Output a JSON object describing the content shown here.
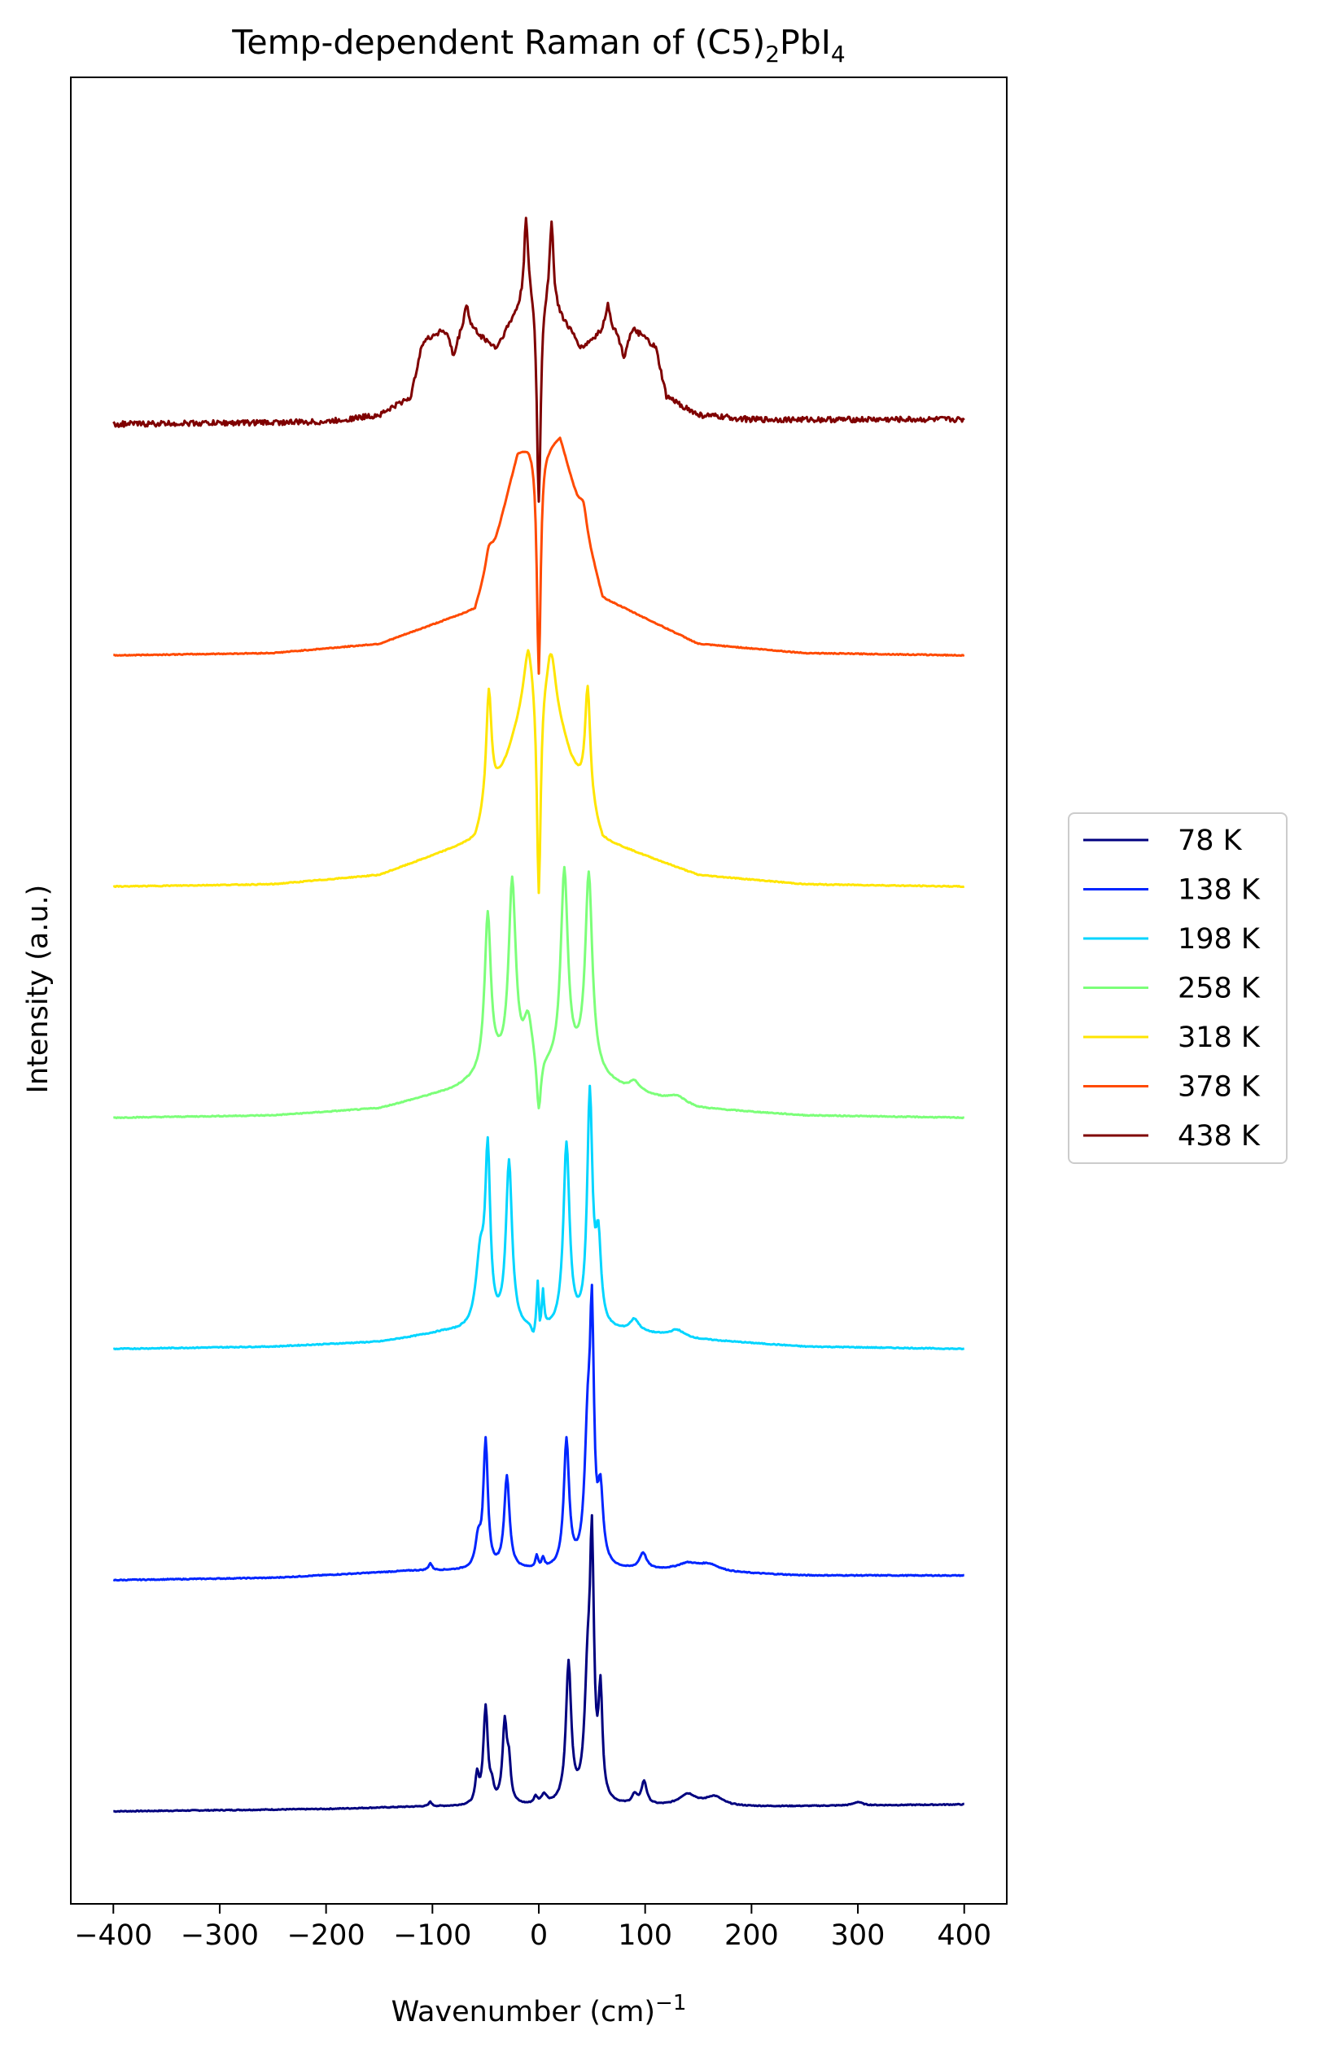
{
  "chart_data": {
    "type": "line",
    "title_main": "Temp-dependent Raman of (C5)",
    "title_sub1": "2",
    "title_mid": "PbI",
    "title_sub2": "4",
    "xlabel_main": "Wavenumber (cm)",
    "xlabel_sup": "−1",
    "ylabel": "Intensity (a.u.)",
    "xlim": [
      -440,
      440
    ],
    "ylim": [
      -0.4,
      7.5
    ],
    "y_ticks_shown": false,
    "grid": false,
    "legend_position": "outside-right",
    "x_ticks": [
      {
        "value": -400,
        "label": "−400"
      },
      {
        "value": -300,
        "label": "−300"
      },
      {
        "value": -200,
        "label": "−200"
      },
      {
        "value": -100,
        "label": "−100"
      },
      {
        "value": 0,
        "label": "0"
      },
      {
        "value": 100,
        "label": "100"
      },
      {
        "value": 200,
        "label": "200"
      },
      {
        "value": 300,
        "label": "300"
      },
      {
        "value": 400,
        "label": "400"
      }
    ],
    "series": [
      {
        "name": "78 K",
        "color": "#00007f",
        "offset": 0.0,
        "baseline": [
          [
            -400,
            0.0
          ],
          [
            -200,
            0.01
          ],
          [
            -110,
            0.02
          ],
          [
            200,
            0.02
          ],
          [
            400,
            0.03
          ]
        ],
        "peaks": [
          [
            -102,
            0.02,
            1.5
          ],
          [
            -58,
            0.12,
            2
          ],
          [
            -50,
            0.42,
            2.5
          ],
          [
            -44,
            0.06,
            2
          ],
          [
            -32,
            0.35,
            2.5
          ],
          [
            -28,
            0.15,
            2
          ],
          [
            -3,
            0.03,
            2
          ],
          [
            5,
            0.04,
            3
          ],
          [
            28,
            0.6,
            3
          ],
          [
            46,
            0.5,
            3.5
          ],
          [
            50,
            1.0,
            2.2
          ],
          [
            58,
            0.45,
            2.2
          ],
          [
            90,
            0.04,
            3
          ],
          [
            99,
            0.1,
            3
          ],
          [
            140,
            0.05,
            10
          ],
          [
            165,
            0.04,
            10
          ],
          [
            300,
            0.015,
            5
          ]
        ],
        "dips": []
      },
      {
        "name": "138 K",
        "color": "#0025ff",
        "offset": 1.0,
        "baseline": [
          [
            -400,
            0.0
          ],
          [
            -250,
            0.01
          ],
          [
            -120,
            0.04
          ],
          [
            120,
            0.04
          ],
          [
            250,
            0.02
          ],
          [
            400,
            0.02
          ]
        ],
        "peaks": [
          [
            -102,
            0.03,
            2
          ],
          [
            -57,
            0.12,
            3
          ],
          [
            -50,
            0.55,
            2.5
          ],
          [
            -30,
            0.4,
            3
          ],
          [
            -2,
            0.05,
            1.5
          ],
          [
            4,
            0.04,
            1.5
          ],
          [
            26,
            0.55,
            3
          ],
          [
            46,
            0.55,
            3.5
          ],
          [
            50,
            0.95,
            2.2
          ],
          [
            58,
            0.3,
            3
          ],
          [
            98,
            0.07,
            4
          ],
          [
            140,
            0.03,
            12
          ],
          [
            160,
            0.03,
            12
          ]
        ],
        "dips": []
      },
      {
        "name": "198 K",
        "color": "#00d5ff",
        "offset": 2.0,
        "baseline": [
          [
            -400,
            0.0
          ],
          [
            -250,
            0.01
          ],
          [
            -150,
            0.03
          ],
          [
            -90,
            0.07
          ],
          [
            90,
            0.07
          ],
          [
            150,
            0.04
          ],
          [
            250,
            0.01
          ],
          [
            400,
            0.0
          ]
        ],
        "peaks": [
          [
            -55,
            0.3,
            5
          ],
          [
            -48,
            0.72,
            2.8
          ],
          [
            -28,
            0.72,
            3.5
          ],
          [
            -1,
            0.2,
            1.2
          ],
          [
            4,
            0.15,
            1.2
          ],
          [
            26,
            0.8,
            3.5
          ],
          [
            48,
            1.0,
            3
          ],
          [
            56,
            0.35,
            3
          ],
          [
            90,
            0.05,
            5
          ],
          [
            130,
            0.03,
            8
          ]
        ],
        "dips": [
          [
            -5,
            0.05,
            2
          ],
          [
            1,
            0.05,
            1
          ]
        ]
      },
      {
        "name": "258 K",
        "color": "#7cff79",
        "offset": 3.0,
        "baseline": [
          [
            -400,
            0.0
          ],
          [
            -250,
            0.01
          ],
          [
            -150,
            0.04
          ],
          [
            -80,
            0.12
          ],
          [
            -40,
            0.2
          ],
          [
            40,
            0.2
          ],
          [
            80,
            0.12
          ],
          [
            150,
            0.04
          ],
          [
            250,
            0.01
          ],
          [
            400,
            0.0
          ]
        ],
        "peaks": [
          [
            -48,
            0.68,
            3.5
          ],
          [
            -25,
            0.8,
            4
          ],
          [
            -10,
            0.2,
            5
          ],
          [
            24,
            0.85,
            4
          ],
          [
            47,
            0.85,
            4
          ],
          [
            90,
            0.04,
            6
          ],
          [
            130,
            0.03,
            10
          ]
        ],
        "dips": [
          [
            0,
            0.25,
            2.5
          ]
        ]
      },
      {
        "name": "318 K",
        "color": "#ffe500",
        "offset": 4.0,
        "baseline": [
          [
            -400,
            0.0
          ],
          [
            -250,
            0.01
          ],
          [
            -150,
            0.05
          ],
          [
            -60,
            0.2
          ],
          [
            -30,
            0.55
          ],
          [
            -10,
            0.85
          ],
          [
            10,
            0.85
          ],
          [
            30,
            0.55
          ],
          [
            60,
            0.2
          ],
          [
            150,
            0.05
          ],
          [
            250,
            0.01
          ],
          [
            400,
            0.0
          ]
        ],
        "peaks": [
          [
            -47,
            0.5,
            3
          ],
          [
            -10,
            0.2,
            5
          ],
          [
            12,
            0.2,
            5
          ],
          [
            46,
            0.5,
            3
          ]
        ],
        "dips": [
          [
            0,
            0.95,
            2.2
          ]
        ]
      },
      {
        "name": "378 K",
        "color": "#ff4a00",
        "offset": 5.0,
        "baseline": [
          [
            -400,
            0.0
          ],
          [
            -250,
            0.01
          ],
          [
            -150,
            0.05
          ],
          [
            -60,
            0.2
          ],
          [
            -40,
            0.5
          ],
          [
            -20,
            0.88
          ],
          [
            -10,
            0.92
          ],
          [
            10,
            0.92
          ],
          [
            20,
            0.95
          ],
          [
            40,
            0.6
          ],
          [
            60,
            0.25
          ],
          [
            150,
            0.05
          ],
          [
            250,
            0.01
          ],
          [
            400,
            0.0
          ]
        ],
        "peaks": [
          [
            -47,
            0.08,
            4
          ],
          [
            42,
            0.1,
            4
          ]
        ],
        "dips": [
          [
            0,
            1.0,
            2.2
          ]
        ]
      },
      {
        "name": "438 K",
        "color": "#7f0000",
        "offset": 6.0,
        "baseline": [
          [
            -400,
            0.0
          ],
          [
            -200,
            0.01
          ],
          [
            -150,
            0.04
          ],
          [
            -120,
            0.12
          ],
          [
            -110,
            0.35
          ],
          [
            -90,
            0.42
          ],
          [
            -60,
            0.4
          ],
          [
            -40,
            0.33
          ],
          [
            -20,
            0.5
          ],
          [
            -10,
            0.6
          ],
          [
            10,
            0.58
          ],
          [
            20,
            0.48
          ],
          [
            40,
            0.33
          ],
          [
            60,
            0.4
          ],
          [
            90,
            0.42
          ],
          [
            110,
            0.33
          ],
          [
            120,
            0.12
          ],
          [
            150,
            0.04
          ],
          [
            200,
            0.02
          ],
          [
            400,
            0.02
          ]
        ],
        "peaks": [
          [
            -68,
            0.12,
            3
          ],
          [
            -12,
            0.35,
            2
          ],
          [
            12,
            0.35,
            2
          ],
          [
            65,
            0.12,
            3
          ]
        ],
        "dips": [
          [
            0,
            0.95,
            2.2
          ],
          [
            -80,
            0.12,
            4
          ],
          [
            80,
            0.12,
            4
          ]
        ],
        "noise": 0.012
      }
    ]
  }
}
